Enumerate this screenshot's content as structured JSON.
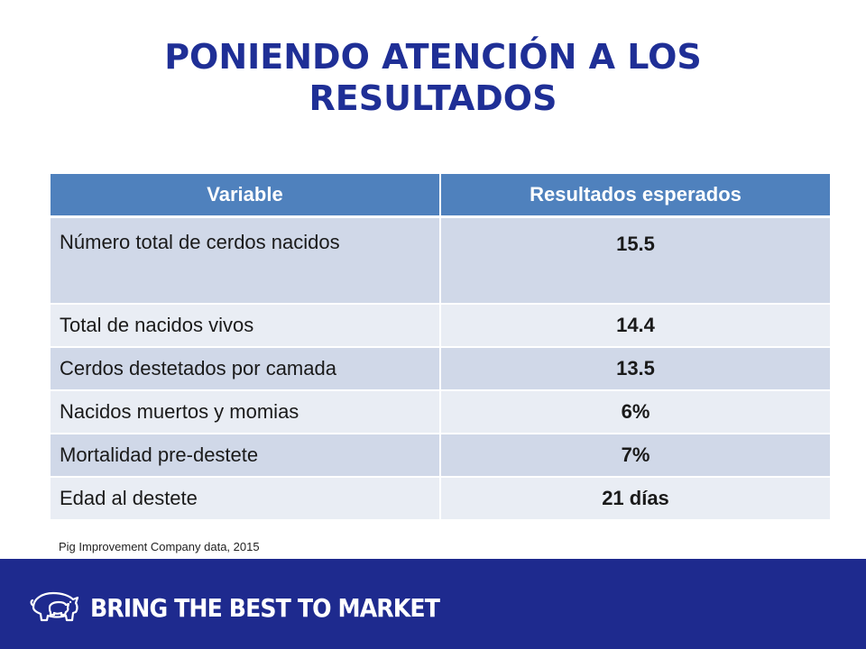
{
  "slide": {
    "title": "PONIENDO ATENCIÓN A LOS RESULTADOS",
    "table": {
      "headers": [
        "Variable",
        "Resultados esperados"
      ],
      "rows": [
        {
          "variable": "Número  total de cerdos nacidos",
          "value": "15.5"
        },
        {
          "variable": "Total de nacidos vivos",
          "value": "14.4"
        },
        {
          "variable": "Cerdos destetados por camada",
          "value": "13.5"
        },
        {
          "variable": "Nacidos muertos y momias",
          "value": "6%"
        },
        {
          "variable": "Mortalidad pre-destete",
          "value": "7%"
        },
        {
          "variable": "Edad al destete",
          "value": "21 días"
        }
      ]
    },
    "source": "Pig Improvement Company data, 2015",
    "footer": {
      "tagline": "BRING THE BEST TO MARKET",
      "logo_icon": "pig-logo-icon"
    },
    "colors": {
      "title": "#1f2f96",
      "header_bg": "#4f81bd",
      "row_odd": "#d0d8e8",
      "row_even": "#e9edf4",
      "footer_bg": "#1e2a8e"
    }
  }
}
